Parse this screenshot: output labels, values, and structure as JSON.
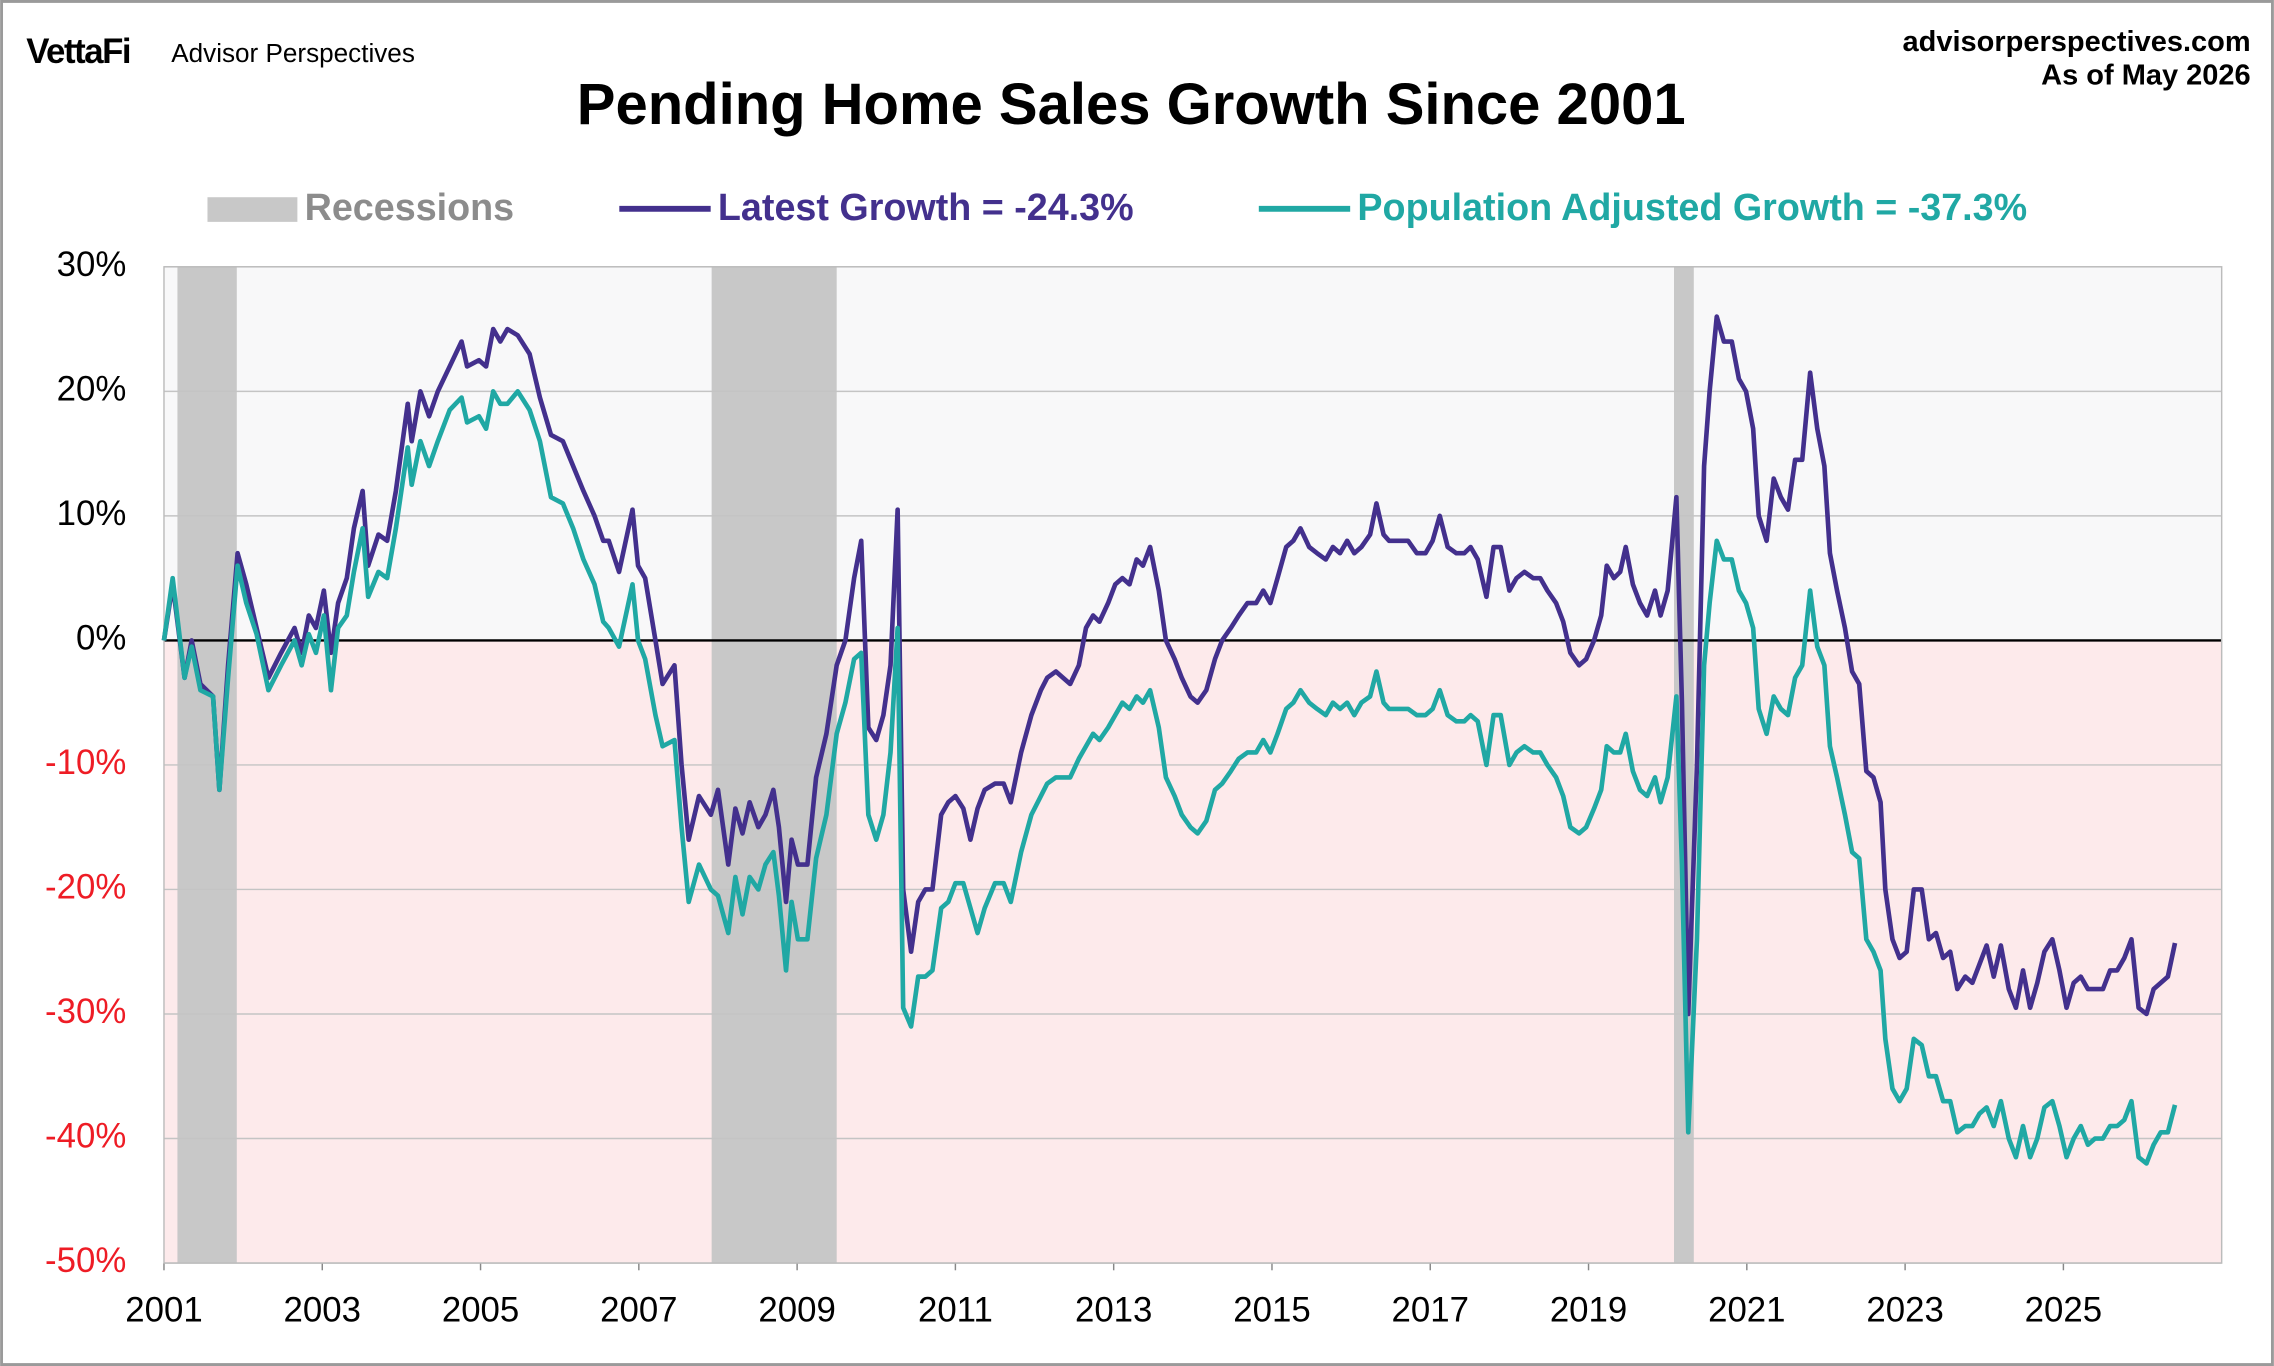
{
  "brand": "VettaFi",
  "brand_sub": "Advisor Perspectives",
  "source": "advisorperspectives.com",
  "as_of": "As of May 2026",
  "chart_data": {
    "type": "line",
    "title": "Pending Home Sales Growth Since 2001",
    "recession_label": "Recessions",
    "recession_color": "#c8c8c8",
    "recessions": [
      [
        2001.17,
        2001.92
      ],
      [
        2007.92,
        2009.5
      ],
      [
        2020.08,
        2020.33
      ]
    ],
    "positive_fill": "#f8f8f9",
    "negative_fill": "#fdeaeb",
    "negative_tick_color": "#ee1c25",
    "grid": true,
    "xlim": [
      2001,
      2027
    ],
    "xticks": [
      2001,
      2003,
      2005,
      2007,
      2009,
      2011,
      2013,
      2015,
      2017,
      2019,
      2021,
      2023,
      2025
    ],
    "ylim": [
      -50,
      30
    ],
    "yticks": [
      {
        "value": -50,
        "label": "-50%"
      },
      {
        "value": -40,
        "label": "-40%"
      },
      {
        "value": -30,
        "label": "-30%"
      },
      {
        "value": -20,
        "label": "-20%"
      },
      {
        "value": -10,
        "label": "-10%"
      },
      {
        "value": 0,
        "label": "0%"
      },
      {
        "value": 10,
        "label": "10%"
      },
      {
        "value": 20,
        "label": "20%"
      },
      {
        "value": 30,
        "label": "30%"
      }
    ],
    "x": [
      2001.0,
      2001.11,
      2001.26,
      2001.35,
      2001.46,
      2001.62,
      2001.7,
      2001.81,
      2001.93,
      2002.04,
      2002.17,
      2002.32,
      2002.48,
      2002.65,
      2002.74,
      2002.83,
      2002.92,
      2003.02,
      2003.11,
      2003.2,
      2003.31,
      2003.4,
      2003.51,
      2003.58,
      2003.71,
      2003.82,
      2003.93,
      2004.08,
      2004.13,
      2004.24,
      2004.35,
      2004.46,
      2004.61,
      2004.76,
      2004.83,
      2004.98,
      2005.07,
      2005.16,
      2005.25,
      2005.34,
      2005.47,
      2005.62,
      2005.75,
      2005.89,
      2006.04,
      2006.17,
      2006.3,
      2006.44,
      2006.55,
      2006.62,
      2006.75,
      2006.92,
      2006.99,
      2007.08,
      2007.21,
      2007.3,
      2007.45,
      2007.54,
      2007.63,
      2007.76,
      2007.91,
      2008.0,
      2008.13,
      2008.22,
      2008.31,
      2008.4,
      2008.51,
      2008.6,
      2008.7,
      2008.77,
      2008.86,
      2008.93,
      2009.01,
      2009.13,
      2009.24,
      2009.37,
      2009.5,
      2009.61,
      2009.72,
      2009.81,
      2009.9,
      2010.0,
      2010.09,
      2010.18,
      2010.27,
      2010.34,
      2010.44,
      2010.53,
      2010.62,
      2010.71,
      2010.82,
      2010.91,
      2011.0,
      2011.1,
      2011.19,
      2011.28,
      2011.37,
      2011.5,
      2011.61,
      2011.7,
      2011.83,
      2011.96,
      2012.08,
      2012.16,
      2012.27,
      2012.36,
      2012.45,
      2012.56,
      2012.65,
      2012.74,
      2012.82,
      2012.93,
      2013.02,
      2013.11,
      2013.2,
      2013.29,
      2013.37,
      2013.46,
      2013.57,
      2013.66,
      2013.77,
      2013.86,
      2013.97,
      2014.06,
      2014.17,
      2014.28,
      2014.37,
      2014.48,
      2014.58,
      2014.69,
      2014.8,
      2014.89,
      2014.98,
      2015.07,
      2015.18,
      2015.27,
      2015.36,
      2015.47,
      2015.57,
      2015.68,
      2015.77,
      2015.86,
      2015.95,
      2016.04,
      2016.13,
      2016.24,
      2016.32,
      2016.41,
      2016.48,
      2016.61,
      2016.72,
      2016.83,
      2016.94,
      2017.03,
      2017.12,
      2017.22,
      2017.33,
      2017.43,
      2017.51,
      2017.6,
      2017.71,
      2017.8,
      2017.89,
      2018.0,
      2018.09,
      2018.19,
      2018.3,
      2018.39,
      2018.48,
      2018.59,
      2018.68,
      2018.77,
      2018.88,
      2018.97,
      2019.07,
      2019.16,
      2019.23,
      2019.32,
      2019.4,
      2019.47,
      2019.56,
      2019.65,
      2019.74,
      2019.84,
      2019.91,
      2020.0,
      2020.11,
      2020.18,
      2020.26,
      2020.37,
      2020.46,
      2020.53,
      2020.62,
      2020.71,
      2020.81,
      2020.9,
      2020.99,
      2021.08,
      2021.15,
      2021.25,
      2021.34,
      2021.43,
      2021.52,
      2021.61,
      2021.7,
      2021.8,
      2021.89,
      2021.98,
      2022.05,
      2022.14,
      2022.24,
      2022.33,
      2022.42,
      2022.51,
      2022.6,
      2022.69,
      2022.75,
      2022.84,
      2022.93,
      2023.02,
      2023.11,
      2023.21,
      2023.3,
      2023.39,
      2023.48,
      2023.57,
      2023.66,
      2023.76,
      2023.85,
      2023.94,
      2024.03,
      2024.12,
      2024.21,
      2024.31,
      2024.4,
      2024.49,
      2024.58,
      2024.67,
      2024.76,
      2024.86,
      2024.95,
      2025.04,
      2025.13,
      2025.22,
      2025.31,
      2025.4,
      2025.5,
      2025.59,
      2025.68,
      2025.77,
      2025.86,
      2025.95,
      2026.05,
      2026.14,
      2026.23,
      2026.32,
      2026.41
    ],
    "series": [
      {
        "name": "Latest Growth = -24.3%",
        "color": "#43308d",
        "values": [
          0,
          4.5,
          -3,
          0,
          -3.5,
          -4.5,
          -12,
          -2,
          7,
          4.5,
          1,
          -3,
          -1,
          1,
          -1,
          2,
          1,
          4,
          -1,
          3,
          5,
          9,
          12,
          6,
          8.5,
          8,
          12,
          19,
          16,
          20,
          18,
          20,
          22,
          24,
          22,
          22.5,
          22,
          25,
          24,
          25,
          24.5,
          23,
          19.5,
          16.5,
          16,
          14,
          12,
          10,
          8,
          8,
          5.5,
          10.5,
          6,
          5,
          0,
          -3.5,
          -2,
          -10,
          -16,
          -12.5,
          -14,
          -12,
          -18,
          -13.5,
          -15.5,
          -13,
          -15,
          -14,
          -12,
          -15,
          -21,
          -16,
          -18,
          -18,
          -11,
          -7.5,
          -2,
          0,
          5,
          8,
          -7,
          -8,
          -6,
          -2,
          10.5,
          -20,
          -25,
          -21,
          -20,
          -20,
          -14,
          -13,
          -12.5,
          -13.5,
          -16,
          -13.5,
          -12,
          -11.5,
          -11.5,
          -13,
          -9,
          -6,
          -4,
          -3,
          -2.5,
          -3,
          -3.5,
          -2,
          1,
          2,
          1.5,
          3,
          4.5,
          5,
          4.5,
          6.5,
          6,
          7.5,
          4,
          0,
          -1.5,
          -3,
          -4.5,
          -5,
          -4,
          -1.5,
          0,
          1,
          2,
          3,
          3,
          4,
          3,
          5,
          7.5,
          8,
          9,
          7.5,
          7,
          6.5,
          7.5,
          7,
          8,
          7,
          7.5,
          8.5,
          11,
          8.5,
          8,
          8,
          8,
          7,
          7,
          8,
          10,
          7.5,
          7,
          7,
          7.5,
          6.5,
          3.5,
          7.5,
          7.5,
          4,
          5,
          5.5,
          5,
          5,
          4,
          3,
          1.5,
          -1,
          -2,
          -1.5,
          0,
          2,
          6,
          5,
          5.5,
          7.5,
          4.5,
          3,
          2,
          4,
          2,
          4,
          11.5,
          -5,
          -30,
          -10,
          14,
          20,
          26,
          24,
          24,
          21,
          20,
          17,
          10,
          8,
          13,
          11.5,
          10.5,
          14.5,
          14.5,
          21.5,
          17,
          14,
          7,
          4,
          1,
          -2.5,
          -3.5,
          -10.5,
          -11,
          -13,
          -20,
          -24,
          -25.5,
          -25,
          -20,
          -20,
          -24,
          -23.5,
          -25.5,
          -25,
          -28,
          -27,
          -27.5,
          -26,
          -24.5,
          -27,
          -24.5,
          -28,
          -29.5,
          -26.5,
          -29.5,
          -27.5,
          -25,
          -24,
          -26.5,
          -29.5,
          -27.5,
          -27,
          -28,
          -28,
          -28,
          -26.5,
          -26.5,
          -25.5,
          -24,
          -29.5,
          -30,
          -28,
          -27.5,
          -27,
          -24.3
        ]
      },
      {
        "name": "Population Adjusted Growth = -37.3%",
        "color": "#20a8a4",
        "values": [
          0,
          5,
          -3,
          -0.5,
          -4,
          -4.5,
          -12,
          -3,
          6,
          3,
          0.5,
          -4,
          -2,
          0,
          -2,
          0.5,
          -1,
          2,
          -4,
          1,
          2,
          5.5,
          9,
          3.5,
          5.5,
          5,
          9,
          15.5,
          12.5,
          16,
          14,
          16,
          18.5,
          19.5,
          17.5,
          18,
          17,
          20,
          19,
          19,
          20,
          18.5,
          16,
          11.5,
          11,
          9,
          6.5,
          4.5,
          1.5,
          1,
          -0.5,
          4.5,
          0,
          -1.5,
          -6,
          -8.5,
          -8,
          -15,
          -21,
          -18,
          -20,
          -20.5,
          -23.5,
          -19,
          -22,
          -19,
          -20,
          -18,
          -17,
          -20.5,
          -26.5,
          -21,
          -24,
          -24,
          -17.5,
          -14,
          -7.5,
          -5,
          -1.5,
          -1,
          -14,
          -16,
          -14,
          -9,
          1,
          -29.5,
          -31,
          -27,
          -27,
          -26.5,
          -21.5,
          -21,
          -19.5,
          -19.5,
          -21.5,
          -23.5,
          -21.5,
          -19.5,
          -19.5,
          -21,
          -17,
          -14,
          -12.5,
          -11.5,
          -11,
          -11,
          -11,
          -9.5,
          -8.5,
          -7.5,
          -8,
          -7,
          -6,
          -5,
          -5.5,
          -4.5,
          -5,
          -4,
          -7,
          -11,
          -12.5,
          -14,
          -15,
          -15.5,
          -14.5,
          -12,
          -11.5,
          -10.5,
          -9.5,
          -9,
          -9,
          -8,
          -9,
          -7.5,
          -5.5,
          -5,
          -4,
          -5,
          -5.5,
          -6,
          -5,
          -5.5,
          -5,
          -6,
          -5,
          -4.5,
          -2.5,
          -5,
          -5.5,
          -5.5,
          -5.5,
          -6,
          -6,
          -5.5,
          -4,
          -6,
          -6.5,
          -6.5,
          -6,
          -6.5,
          -10,
          -6,
          -6,
          -10,
          -9,
          -8.5,
          -9,
          -9,
          -10,
          -11,
          -12.5,
          -15,
          -15.5,
          -15,
          -13.5,
          -12,
          -8.5,
          -9,
          -9,
          -7.5,
          -10.5,
          -12,
          -12.5,
          -11,
          -13,
          -11,
          -4.5,
          -18,
          -39.5,
          -24,
          -2,
          3,
          8,
          6.5,
          6.5,
          4,
          3,
          1,
          -5.5,
          -7.5,
          -4.5,
          -5.5,
          -6,
          -3,
          -2,
          4,
          -0.5,
          -2,
          -8.5,
          -11,
          -14,
          -17,
          -17.5,
          -24,
          -25,
          -26.5,
          -32,
          -36,
          -37,
          -36,
          -32,
          -32.5,
          -35,
          -35,
          -37,
          -37,
          -39.5,
          -39,
          -39,
          -38,
          -37.5,
          -39,
          -37,
          -40,
          -41.5,
          -39,
          -41.5,
          -40,
          -37.5,
          -37,
          -39,
          -41.5,
          -40,
          -39,
          -40.5,
          -40,
          -40,
          -39,
          -39,
          -38.5,
          -37,
          -41.5,
          -42,
          -40.5,
          -39.5,
          -39.5,
          -37.3
        ]
      }
    ]
  }
}
